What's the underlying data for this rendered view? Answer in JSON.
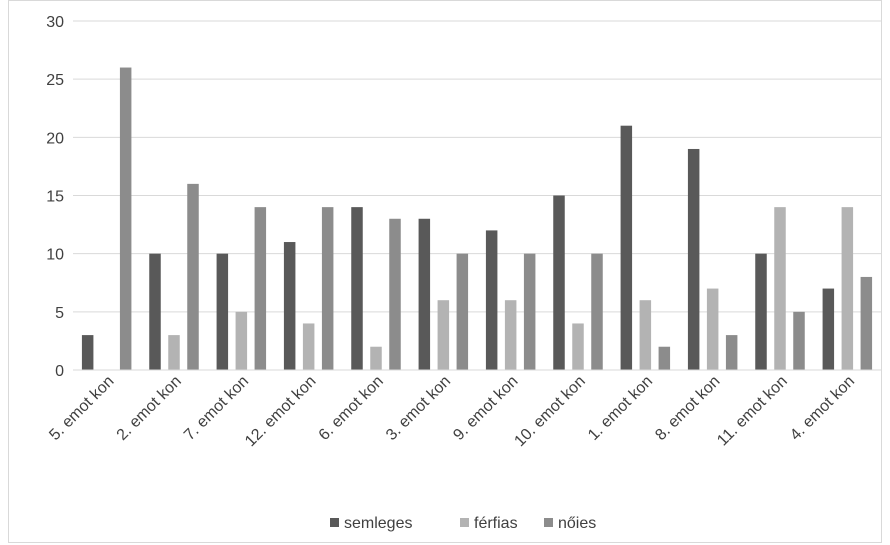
{
  "chart_data": {
    "type": "bar",
    "categories": [
      "5. emot kon",
      "2. emot kon",
      "7. emot kon",
      "12. emot kon",
      "6. emot kon",
      "3. emot kon",
      "9. emot kon",
      "10. emot kon",
      "1. emot kon",
      "8. emot kon",
      "11. emot kon",
      "4. emot kon"
    ],
    "series": [
      {
        "name": "semleges",
        "color": "#595959",
        "values": [
          3,
          10,
          10,
          11,
          14,
          13,
          12,
          15,
          21,
          19,
          10,
          7
        ]
      },
      {
        "name": "férfias",
        "color": "#b3b3b3",
        "values": [
          0,
          3,
          5,
          4,
          2,
          6,
          6,
          4,
          6,
          7,
          14,
          14
        ]
      },
      {
        "name": "nőies",
        "color": "#8c8c8c",
        "values": [
          26,
          16,
          14,
          14,
          13,
          10,
          10,
          10,
          2,
          3,
          5,
          8
        ]
      }
    ],
    "ylim": [
      0,
      30
    ],
    "yticks": [
      0,
      5,
      10,
      15,
      20,
      25,
      30
    ],
    "grid": true,
    "legend": "bottom",
    "title": "",
    "xlabel": "",
    "ylabel": ""
  }
}
